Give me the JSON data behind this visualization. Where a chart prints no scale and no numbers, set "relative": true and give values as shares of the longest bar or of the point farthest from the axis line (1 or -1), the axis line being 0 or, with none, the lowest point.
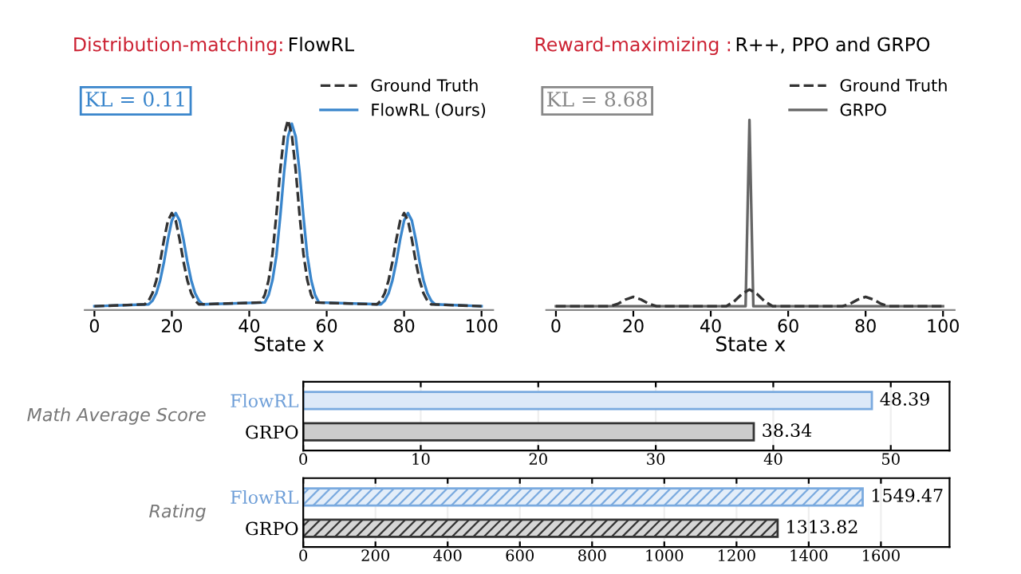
{
  "chart_data": [
    {
      "type": "line",
      "title": "Distribution-matching:",
      "subtitle": "FlowRL",
      "xlabel": "State x",
      "relative": true,
      "xlim": [
        -2.5,
        103
      ],
      "xticks": [
        0,
        20,
        40,
        60,
        80,
        100
      ],
      "legend": "top right",
      "annotations": [
        "KL = 0.11"
      ],
      "grid": false,
      "series": [
        {
          "name": "Ground Truth",
          "color": "#333333",
          "line_style": "dashed",
          "x": [
            0,
            13,
            14,
            15,
            16,
            17,
            18,
            19,
            20,
            21,
            22,
            23,
            24,
            25,
            26,
            27,
            43,
            44,
            45,
            46,
            47,
            48,
            49,
            50,
            51,
            52,
            53,
            54,
            55,
            56,
            57,
            73,
            74,
            75,
            76,
            77,
            78,
            79,
            80,
            81,
            82,
            83,
            84,
            85,
            86,
            87,
            100
          ],
          "values": [
            0,
            0.01,
            0.03,
            0.07,
            0.14,
            0.24,
            0.36,
            0.46,
            0.5,
            0.46,
            0.36,
            0.24,
            0.14,
            0.07,
            0.03,
            0.01,
            0.02,
            0.06,
            0.14,
            0.28,
            0.49,
            0.73,
            0.92,
            1,
            0.92,
            0.73,
            0.49,
            0.28,
            0.14,
            0.06,
            0.02,
            0.01,
            0.03,
            0.07,
            0.14,
            0.24,
            0.36,
            0.46,
            0.5,
            0.46,
            0.36,
            0.24,
            0.14,
            0.07,
            0.03,
            0.01,
            0
          ]
        },
        {
          "name": "FlowRL (Ours)",
          "color": "#3a86cc",
          "line_style": "solid",
          "x": [
            0,
            14,
            15,
            16,
            17,
            18,
            19,
            20,
            21,
            22,
            23,
            24,
            25,
            26,
            27,
            28,
            44,
            45,
            46,
            47,
            48,
            49,
            50,
            51,
            52,
            53,
            54,
            55,
            56,
            57,
            58,
            74,
            75,
            76,
            77,
            78,
            79,
            80,
            81,
            82,
            83,
            84,
            85,
            86,
            87,
            88,
            100
          ],
          "values": [
            0,
            0.01,
            0.03,
            0.07,
            0.14,
            0.24,
            0.36,
            0.46,
            0.5,
            0.46,
            0.36,
            0.24,
            0.14,
            0.07,
            0.03,
            0.01,
            0.02,
            0.06,
            0.14,
            0.27,
            0.48,
            0.72,
            0.91,
            0.98,
            0.91,
            0.72,
            0.48,
            0.27,
            0.14,
            0.06,
            0.02,
            0.01,
            0.03,
            0.07,
            0.14,
            0.24,
            0.36,
            0.46,
            0.5,
            0.46,
            0.36,
            0.24,
            0.14,
            0.07,
            0.03,
            0.01,
            0
          ]
        }
      ]
    },
    {
      "type": "line",
      "title": "Reward-maximizing :",
      "subtitle": "R++, PPO and GRPO",
      "xlabel": "State x",
      "relative": true,
      "xlim": [
        -2.5,
        103
      ],
      "xticks": [
        0,
        20,
        40,
        60,
        80,
        100
      ],
      "legend": "top right",
      "annotations": [
        "KL = 8.68"
      ],
      "grid": false,
      "series": [
        {
          "name": "Ground Truth",
          "color": "#333333",
          "line_style": "dashed",
          "x": [
            0,
            14,
            16,
            18,
            20,
            22,
            24,
            26,
            44,
            46,
            48,
            50,
            52,
            54,
            56,
            74,
            76,
            78,
            80,
            82,
            84,
            86,
            100
          ],
          "values": [
            0,
            0,
            0.013,
            0.036,
            0.05,
            0.036,
            0.013,
            0,
            0,
            0.025,
            0.065,
            0.09,
            0.065,
            0.025,
            0,
            0,
            0.013,
            0.036,
            0.05,
            0.036,
            0.013,
            0,
            0
          ]
        },
        {
          "name": "GRPO",
          "color": "#666666",
          "line_style": "solid",
          "x": [
            0,
            49,
            50,
            51,
            100
          ],
          "values": [
            0,
            0,
            1,
            0,
            0
          ]
        }
      ]
    },
    {
      "type": "bar",
      "orientation": "horizontal",
      "ylabel": "Math Average Score",
      "categories": [
        "FlowRL",
        "GRPO"
      ],
      "values": [
        48.39,
        38.34
      ],
      "colors": [
        "#dde9f8",
        "#cccccc"
      ],
      "xlim": [
        0,
        55
      ],
      "xticks": [
        0,
        10,
        20,
        30,
        40,
        50
      ],
      "data_labels": true,
      "grid": "x"
    },
    {
      "type": "bar",
      "orientation": "horizontal",
      "ylabel": "Rating",
      "categories": [
        "FlowRL",
        "GRPO"
      ],
      "values": [
        1549.47,
        1313.82
      ],
      "colors": [
        "#7aaadf",
        "#333333"
      ],
      "xlim": [
        0,
        1790
      ],
      "xticks": [
        0,
        200,
        400,
        600,
        800,
        1000,
        1200,
        1400,
        1600
      ],
      "data_labels": true,
      "grid": "x"
    }
  ]
}
